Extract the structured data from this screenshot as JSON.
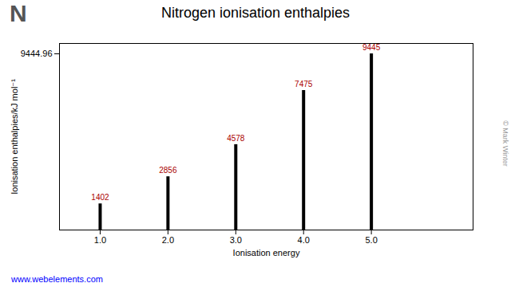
{
  "chart_data": {
    "type": "bar",
    "title": "Nitrogen ionisation enthalpies",
    "x": [
      1,
      2,
      3,
      4,
      5
    ],
    "values": [
      1402,
      2856,
      4578,
      7475,
      9445
    ],
    "color": "#000000",
    "xlabel": "Ionisation energy",
    "ylabel": "Ionisation enthalpies/kJ mol⁻¹",
    "xlim": [
      0.4,
      6.5
    ],
    "xticks": [
      1,
      2,
      3,
      4,
      5
    ],
    "ylim": [
      0,
      10000
    ],
    "yticks": [
      9444.96
    ],
    "grid": false,
    "data_labels": true,
    "annotations": [
      "N",
      "www.webelements.com",
      "© Mark Winter"
    ]
  }
}
